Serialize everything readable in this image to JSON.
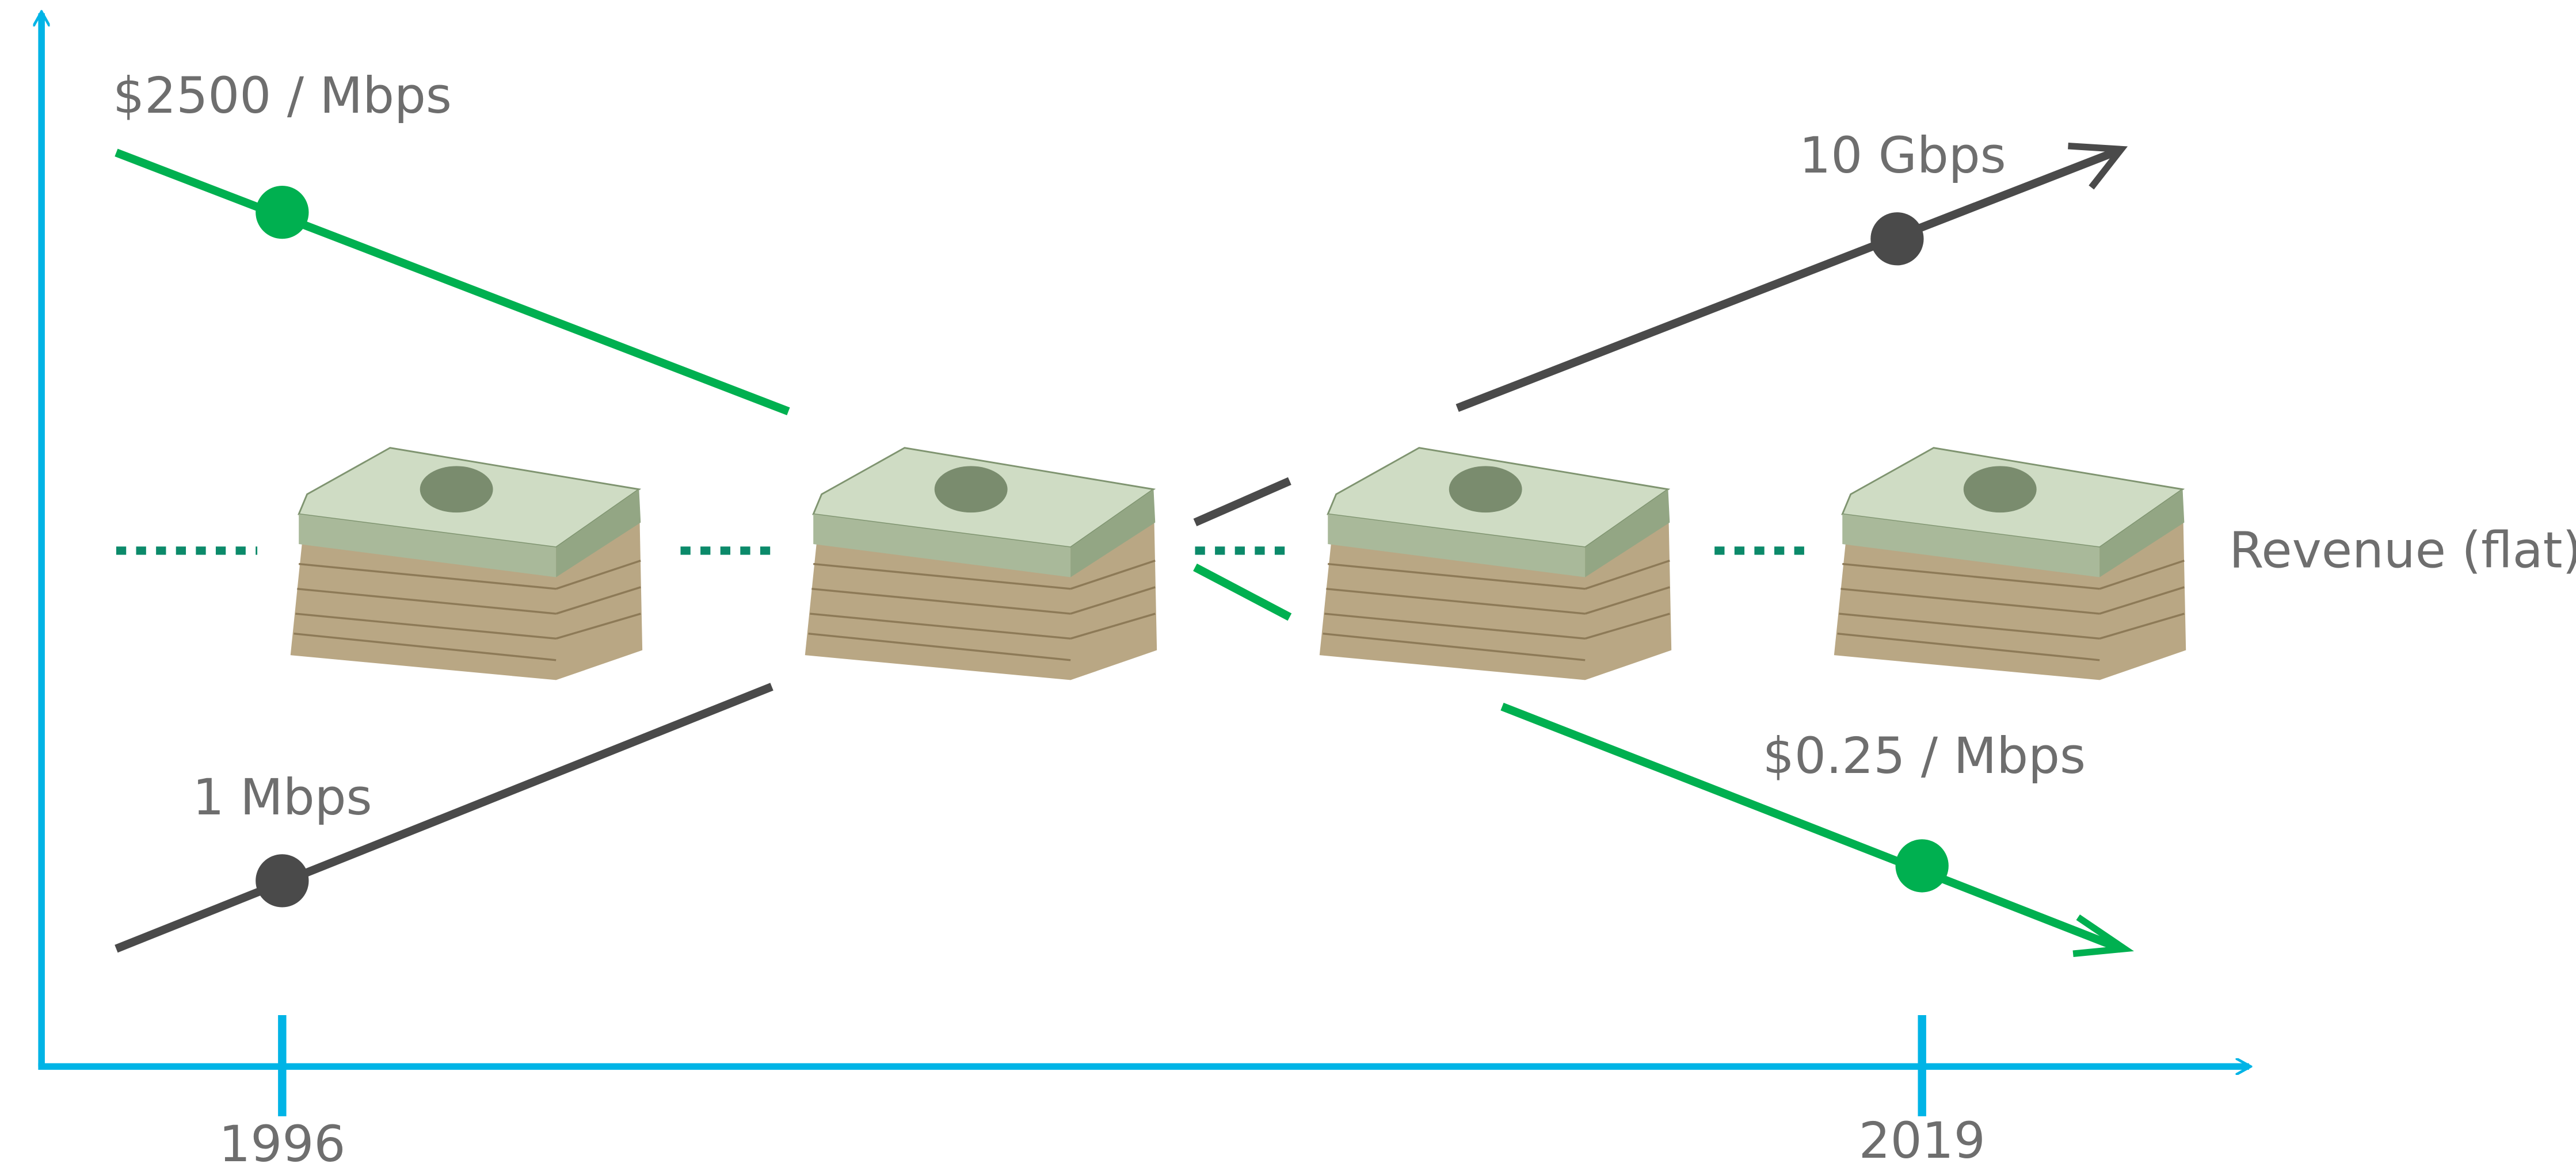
{
  "annotations": {
    "price_start": "$2500 / Mbps",
    "speed_end": "10 Gbps",
    "revenue": "Revenue (flat)",
    "speed_start": "1 Mbps",
    "price_end": "$0.25 / Mbps"
  },
  "x_axis": {
    "labels": [
      "1996",
      "2019"
    ]
  }
}
